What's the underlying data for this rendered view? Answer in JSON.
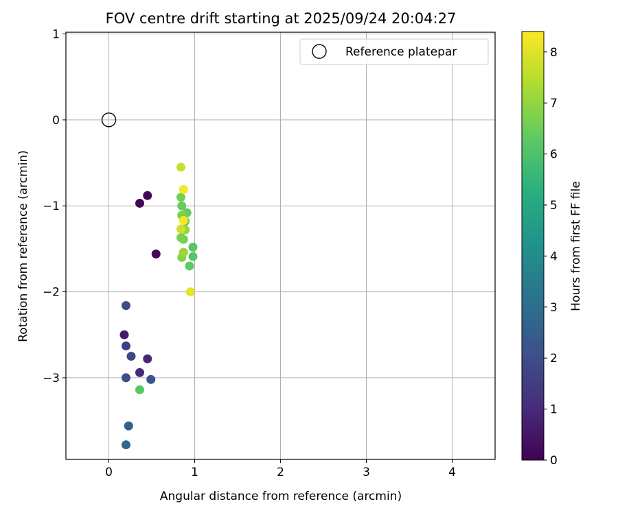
{
  "chart_data": {
    "type": "scatter",
    "title": "FOV centre drift starting at 2025/09/24 20:04:27",
    "xlabel": "Angular distance from reference (arcmin)",
    "ylabel": "Rotation from reference (arcmin)",
    "xlim": [
      -0.5,
      4.5
    ],
    "ylim": [
      -3.95,
      1.02
    ],
    "xticks": [
      0,
      1,
      2,
      3,
      4
    ],
    "xtick_labels": [
      "0",
      "1",
      "2",
      "3",
      "4"
    ],
    "yticks": [
      1,
      0,
      -1,
      -2,
      -3
    ],
    "ytick_labels": [
      "1",
      "0",
      "−1",
      "−2",
      "−3"
    ],
    "grid": true,
    "legend": {
      "placement": "top-right",
      "entries": [
        "Reference platepar"
      ]
    },
    "reference_point": {
      "x": 0,
      "y": 0,
      "label": "Reference platepar"
    },
    "colorbar": {
      "label": "Hours from first FF file",
      "min": 0,
      "max": 8.4,
      "ticks": [
        0,
        1,
        2,
        3,
        4,
        5,
        6,
        7,
        8
      ],
      "tick_labels": [
        "0",
        "1",
        "2",
        "3",
        "4",
        "5",
        "6",
        "7",
        "8"
      ],
      "colormap": "viridis"
    },
    "points": [
      {
        "x": 0.36,
        "y": -0.97,
        "hours": 0.05
      },
      {
        "x": 0.45,
        "y": -0.88,
        "hours": 0.1
      },
      {
        "x": 0.55,
        "y": -1.56,
        "hours": 0.2
      },
      {
        "x": 0.18,
        "y": -2.5,
        "hours": 0.6
      },
      {
        "x": 0.45,
        "y": -2.78,
        "hours": 0.9
      },
      {
        "x": 0.36,
        "y": -2.94,
        "hours": 1.0
      },
      {
        "x": 0.2,
        "y": -2.63,
        "hours": 1.5
      },
      {
        "x": 0.26,
        "y": -2.75,
        "hours": 1.7
      },
      {
        "x": 0.2,
        "y": -3.0,
        "hours": 2.0
      },
      {
        "x": 0.2,
        "y": -2.16,
        "hours": 2.0
      },
      {
        "x": 0.49,
        "y": -3.02,
        "hours": 2.2
      },
      {
        "x": 0.23,
        "y": -3.56,
        "hours": 2.5
      },
      {
        "x": 0.2,
        "y": -3.78,
        "hours": 2.8
      },
      {
        "x": 0.36,
        "y": -3.14,
        "hours": 6.2
      },
      {
        "x": 0.98,
        "y": -1.48,
        "hours": 6.2
      },
      {
        "x": 0.98,
        "y": -1.59,
        "hours": 6.2
      },
      {
        "x": 0.94,
        "y": -1.7,
        "hours": 6.3
      },
      {
        "x": 0.85,
        "y": -1.0,
        "hours": 6.4
      },
      {
        "x": 0.91,
        "y": -1.08,
        "hours": 6.4
      },
      {
        "x": 0.89,
        "y": -1.18,
        "hours": 6.5
      },
      {
        "x": 0.84,
        "y": -0.9,
        "hours": 6.6
      },
      {
        "x": 0.87,
        "y": -1.39,
        "hours": 6.6
      },
      {
        "x": 0.84,
        "y": -1.37,
        "hours": 6.7
      },
      {
        "x": 0.85,
        "y": -1.11,
        "hours": 6.7
      },
      {
        "x": 0.85,
        "y": -1.6,
        "hours": 6.8
      },
      {
        "x": 0.87,
        "y": -1.54,
        "hours": 7.1
      },
      {
        "x": 0.89,
        "y": -1.28,
        "hours": 7.0
      },
      {
        "x": 0.84,
        "y": -0.55,
        "hours": 7.7
      },
      {
        "x": 0.84,
        "y": -1.27,
        "hours": 7.8
      },
      {
        "x": 0.95,
        "y": -2.0,
        "hours": 8.1
      },
      {
        "x": 0.87,
        "y": -0.81,
        "hours": 8.3
      },
      {
        "x": 0.87,
        "y": -1.17,
        "hours": 8.4
      }
    ]
  }
}
